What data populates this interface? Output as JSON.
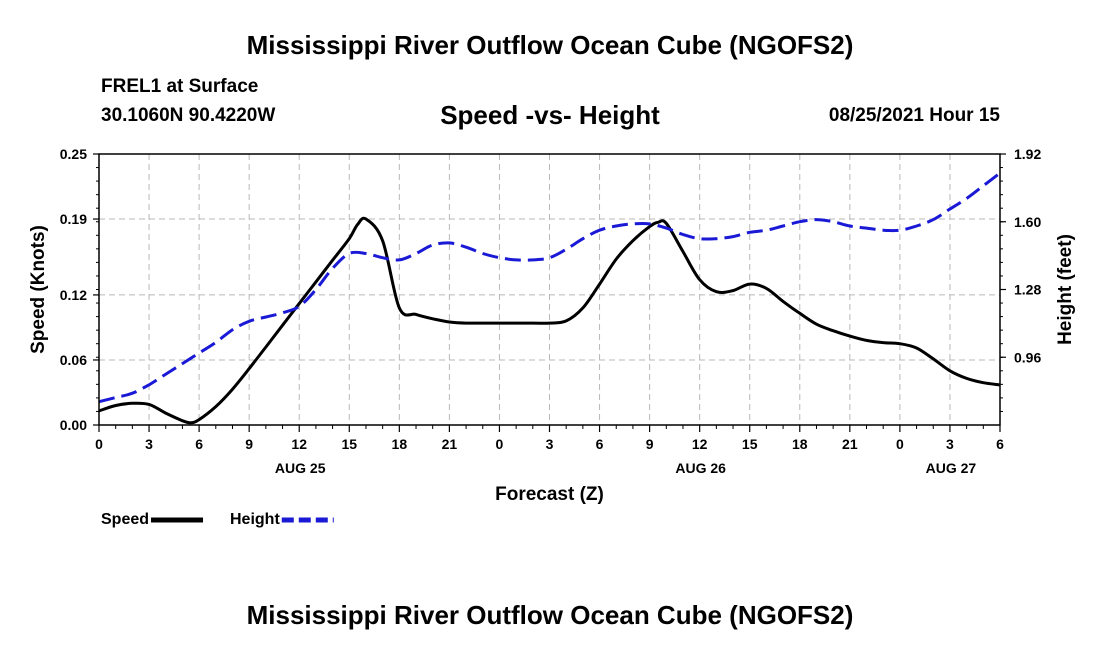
{
  "header": {
    "main_title": "Mississippi River Outflow Ocean Cube (NGOFS2)",
    "station_name": "FREL1 at Surface",
    "coordinates": "30.1060N  90.4220W",
    "chart_title": "Speed -vs- Height",
    "forecast_time": "08/25/2021 Hour 15"
  },
  "footer": {
    "title": "Mississippi River Outflow Ocean Cube (NGOFS2)"
  },
  "chart_data": {
    "type": "line",
    "title": "Speed -vs- Height",
    "xlabel": "Forecast (Z)",
    "ylabel": "Speed (Knots)",
    "y2label": "Height (feet)",
    "grid": true,
    "x_hours_range": [
      0,
      54
    ],
    "x_tick_hours": [
      0,
      3,
      6,
      9,
      12,
      15,
      18,
      21,
      24,
      27,
      30,
      33,
      36,
      39,
      42,
      45,
      48,
      51,
      54
    ],
    "x_tick_labels": [
      "0",
      "3",
      "6",
      "9",
      "12",
      "15",
      "18",
      "21",
      "0",
      "3",
      "6",
      "9",
      "12",
      "15",
      "18",
      "21",
      "0",
      "3",
      "6"
    ],
    "date_labels": [
      {
        "hour": 12,
        "label": "AUG 25"
      },
      {
        "hour": 36,
        "label": "AUG 26"
      },
      {
        "hour": 51,
        "label": "AUG 27"
      }
    ],
    "ylim": [
      0,
      0.25
    ],
    "y_ticks": [
      0.0,
      0.06,
      0.12,
      0.19,
      0.25
    ],
    "y_tick_labels": [
      "0.00",
      "0.06",
      "0.12",
      "0.19",
      "0.25"
    ],
    "y2lim": [
      0.64,
      1.92
    ],
    "y2_ticks": [
      0.96,
      1.28,
      1.6,
      1.92
    ],
    "y2_tick_labels": [
      "0.96",
      "1.28",
      "1.60",
      "1.92"
    ],
    "series": [
      {
        "name": "Speed",
        "axis": "left",
        "color": "#000000",
        "style": "solid",
        "x": [
          0,
          1,
          2,
          3,
          4,
          5,
          5.5,
          6,
          7,
          8,
          9,
          10,
          11,
          12,
          13,
          14,
          15,
          15.5,
          16,
          17,
          18,
          19,
          20,
          21,
          22,
          24,
          26,
          27,
          28,
          29,
          30,
          31,
          32,
          33,
          33.5,
          34,
          35,
          36,
          37,
          38,
          39,
          40,
          41,
          42,
          43,
          44,
          45,
          46,
          47,
          48,
          49,
          50,
          51,
          52,
          53,
          54
        ],
        "values": [
          0.013,
          0.018,
          0.02,
          0.019,
          0.011,
          0.004,
          0.002,
          0.005,
          0.017,
          0.033,
          0.052,
          0.072,
          0.092,
          0.112,
          0.132,
          0.152,
          0.172,
          0.185,
          0.19,
          0.17,
          0.108,
          0.102,
          0.098,
          0.095,
          0.094,
          0.094,
          0.094,
          0.094,
          0.096,
          0.108,
          0.13,
          0.153,
          0.17,
          0.183,
          0.187,
          0.186,
          0.16,
          0.134,
          0.123,
          0.124,
          0.13,
          0.126,
          0.114,
          0.103,
          0.093,
          0.087,
          0.082,
          0.078,
          0.076,
          0.075,
          0.071,
          0.061,
          0.05,
          0.043,
          0.039,
          0.037
        ]
      },
      {
        "name": "Height",
        "axis": "right",
        "color": "#1a1ad6",
        "style": "dashed",
        "x": [
          0,
          1,
          2,
          3,
          4,
          5,
          6,
          7,
          8,
          9,
          10,
          11,
          12,
          13,
          14,
          15,
          16,
          17,
          18,
          19,
          20,
          21,
          22,
          23,
          24,
          25,
          26,
          27,
          28,
          29,
          30,
          31,
          32,
          33,
          34,
          35,
          36,
          37,
          38,
          39,
          40,
          41,
          42,
          43,
          44,
          45,
          46,
          47,
          48,
          49,
          50,
          51,
          52,
          53,
          54
        ],
        "values": [
          0.75,
          0.77,
          0.79,
          0.83,
          0.88,
          0.93,
          0.98,
          1.03,
          1.09,
          1.13,
          1.15,
          1.17,
          1.2,
          1.28,
          1.38,
          1.45,
          1.45,
          1.43,
          1.42,
          1.45,
          1.49,
          1.5,
          1.48,
          1.45,
          1.43,
          1.42,
          1.42,
          1.43,
          1.47,
          1.52,
          1.56,
          1.58,
          1.59,
          1.59,
          1.57,
          1.54,
          1.52,
          1.52,
          1.53,
          1.55,
          1.56,
          1.58,
          1.6,
          1.61,
          1.6,
          1.58,
          1.57,
          1.56,
          1.56,
          1.58,
          1.61,
          1.66,
          1.71,
          1.77,
          1.83
        ]
      }
    ],
    "legend": {
      "placement": "bottom-left",
      "entries": [
        {
          "label": "Speed",
          "color": "#000000",
          "style": "solid"
        },
        {
          "label": "Height",
          "color": "#1a1ad6",
          "style": "dashed"
        }
      ]
    }
  }
}
